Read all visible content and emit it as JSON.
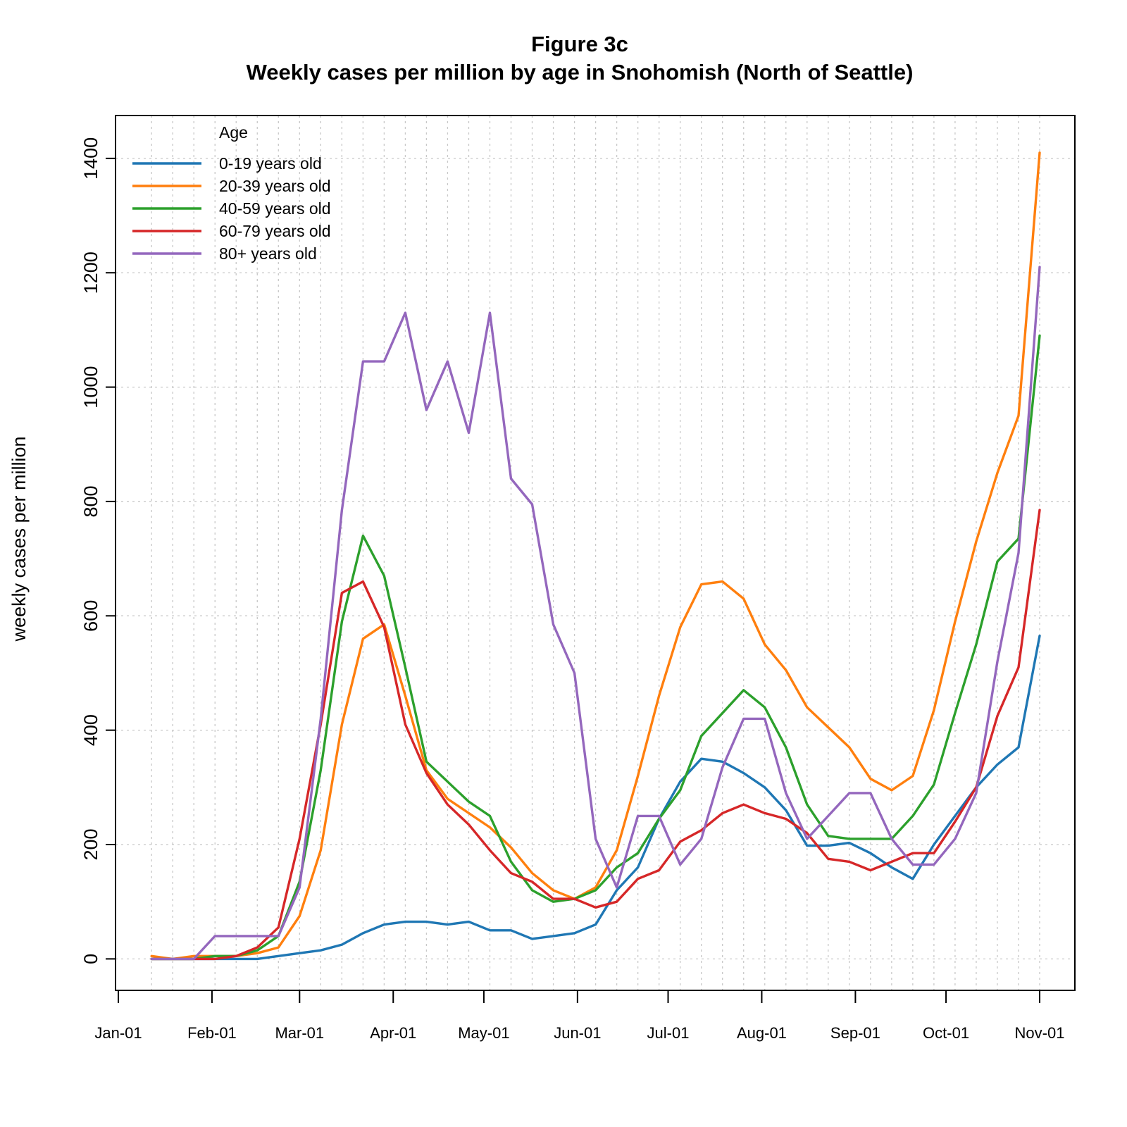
{
  "chart_data": {
    "type": "line",
    "title": "Figure 3c",
    "subtitle": "Weekly cases per million by age in Snohomish (North of Seattle)",
    "xlabel": "",
    "ylabel": "weekly cases per million",
    "ylim": [
      -55,
      1475
    ],
    "xlim": [
      "2020-01-01",
      "2020-11-01"
    ],
    "y_ticks": [
      0,
      200,
      400,
      600,
      800,
      1000,
      1200,
      1400
    ],
    "x_ticks": [
      {
        "label": "Jan-01",
        "date": "2020-01-01"
      },
      {
        "label": "Feb-01",
        "date": "2020-02-01"
      },
      {
        "label": "Mar-01",
        "date": "2020-03-01"
      },
      {
        "label": "Apr-01",
        "date": "2020-04-01"
      },
      {
        "label": "May-01",
        "date": "2020-05-01"
      },
      {
        "label": "Jun-01",
        "date": "2020-06-01"
      },
      {
        "label": "Jul-01",
        "date": "2020-07-01"
      },
      {
        "label": "Aug-01",
        "date": "2020-08-01"
      },
      {
        "label": "Sep-01",
        "date": "2020-09-01"
      },
      {
        "label": "Oct-01",
        "date": "2020-10-01"
      },
      {
        "label": "Nov-01",
        "date": "2020-11-01"
      }
    ],
    "grid": true,
    "legend": {
      "title": "Age",
      "placement": "top-left"
    },
    "x": [
      "2020-01-12",
      "2020-01-19",
      "2020-01-26",
      "2020-02-02",
      "2020-02-09",
      "2020-02-16",
      "2020-02-23",
      "2020-03-01",
      "2020-03-08",
      "2020-03-15",
      "2020-03-22",
      "2020-03-29",
      "2020-04-05",
      "2020-04-12",
      "2020-04-19",
      "2020-04-26",
      "2020-05-03",
      "2020-05-10",
      "2020-05-17",
      "2020-05-24",
      "2020-05-31",
      "2020-06-07",
      "2020-06-14",
      "2020-06-21",
      "2020-06-28",
      "2020-07-05",
      "2020-07-12",
      "2020-07-19",
      "2020-07-26",
      "2020-08-02",
      "2020-08-09",
      "2020-08-16",
      "2020-08-23",
      "2020-08-30",
      "2020-09-06",
      "2020-09-13",
      "2020-09-20",
      "2020-09-27",
      "2020-10-04",
      "2020-10-11",
      "2020-10-18",
      "2020-10-25",
      "2020-11-01"
    ],
    "series": [
      {
        "name": "0-19 years old",
        "color": "#1f77b4",
        "values": [
          0,
          0,
          0,
          0,
          0,
          0,
          5,
          10,
          15,
          25,
          45,
          60,
          65,
          65,
          60,
          65,
          50,
          50,
          35,
          40,
          45,
          60,
          120,
          160,
          245,
          310,
          350,
          345,
          325,
          300,
          260,
          198,
          198,
          203,
          185,
          160,
          140,
          200,
          250,
          300,
          340,
          370,
          565
        ]
      },
      {
        "name": "20-39 years old",
        "color": "#ff7f0e",
        "values": [
          5,
          0,
          5,
          5,
          5,
          10,
          20,
          75,
          190,
          410,
          560,
          585,
          460,
          330,
          280,
          255,
          230,
          195,
          150,
          120,
          105,
          125,
          190,
          320,
          460,
          580,
          655,
          660,
          630,
          550,
          505,
          440,
          405,
          370,
          315,
          295,
          320,
          435,
          590,
          730,
          850,
          950,
          1410
        ]
      },
      {
        "name": "40-59 years old",
        "color": "#2ca02c",
        "values": [
          0,
          0,
          0,
          5,
          5,
          15,
          40,
          135,
          330,
          590,
          740,
          670,
          510,
          345,
          310,
          275,
          250,
          170,
          120,
          100,
          105,
          120,
          160,
          185,
          245,
          295,
          390,
          430,
          470,
          440,
          370,
          270,
          215,
          210,
          210,
          210,
          250,
          305,
          430,
          550,
          695,
          735,
          1090
        ]
      },
      {
        "name": "60-79 years old",
        "color": "#d62728",
        "values": [
          0,
          0,
          0,
          0,
          5,
          20,
          55,
          210,
          410,
          640,
          660,
          580,
          410,
          325,
          270,
          235,
          190,
          150,
          135,
          105,
          105,
          90,
          100,
          140,
          155,
          205,
          225,
          255,
          270,
          255,
          245,
          220,
          175,
          170,
          155,
          170,
          185,
          185,
          240,
          300,
          425,
          510,
          785
        ]
      },
      {
        "name": "80+ years old",
        "color": "#9467bd",
        "values": [
          0,
          0,
          0,
          40,
          40,
          40,
          40,
          125,
          420,
          785,
          1045,
          1045,
          1130,
          960,
          1045,
          920,
          1130,
          840,
          795,
          585,
          500,
          210,
          125,
          250,
          250,
          165,
          210,
          335,
          420,
          420,
          290,
          210,
          250,
          290,
          290,
          210,
          165,
          165,
          210,
          290,
          520,
          710,
          1210
        ]
      }
    ]
  }
}
